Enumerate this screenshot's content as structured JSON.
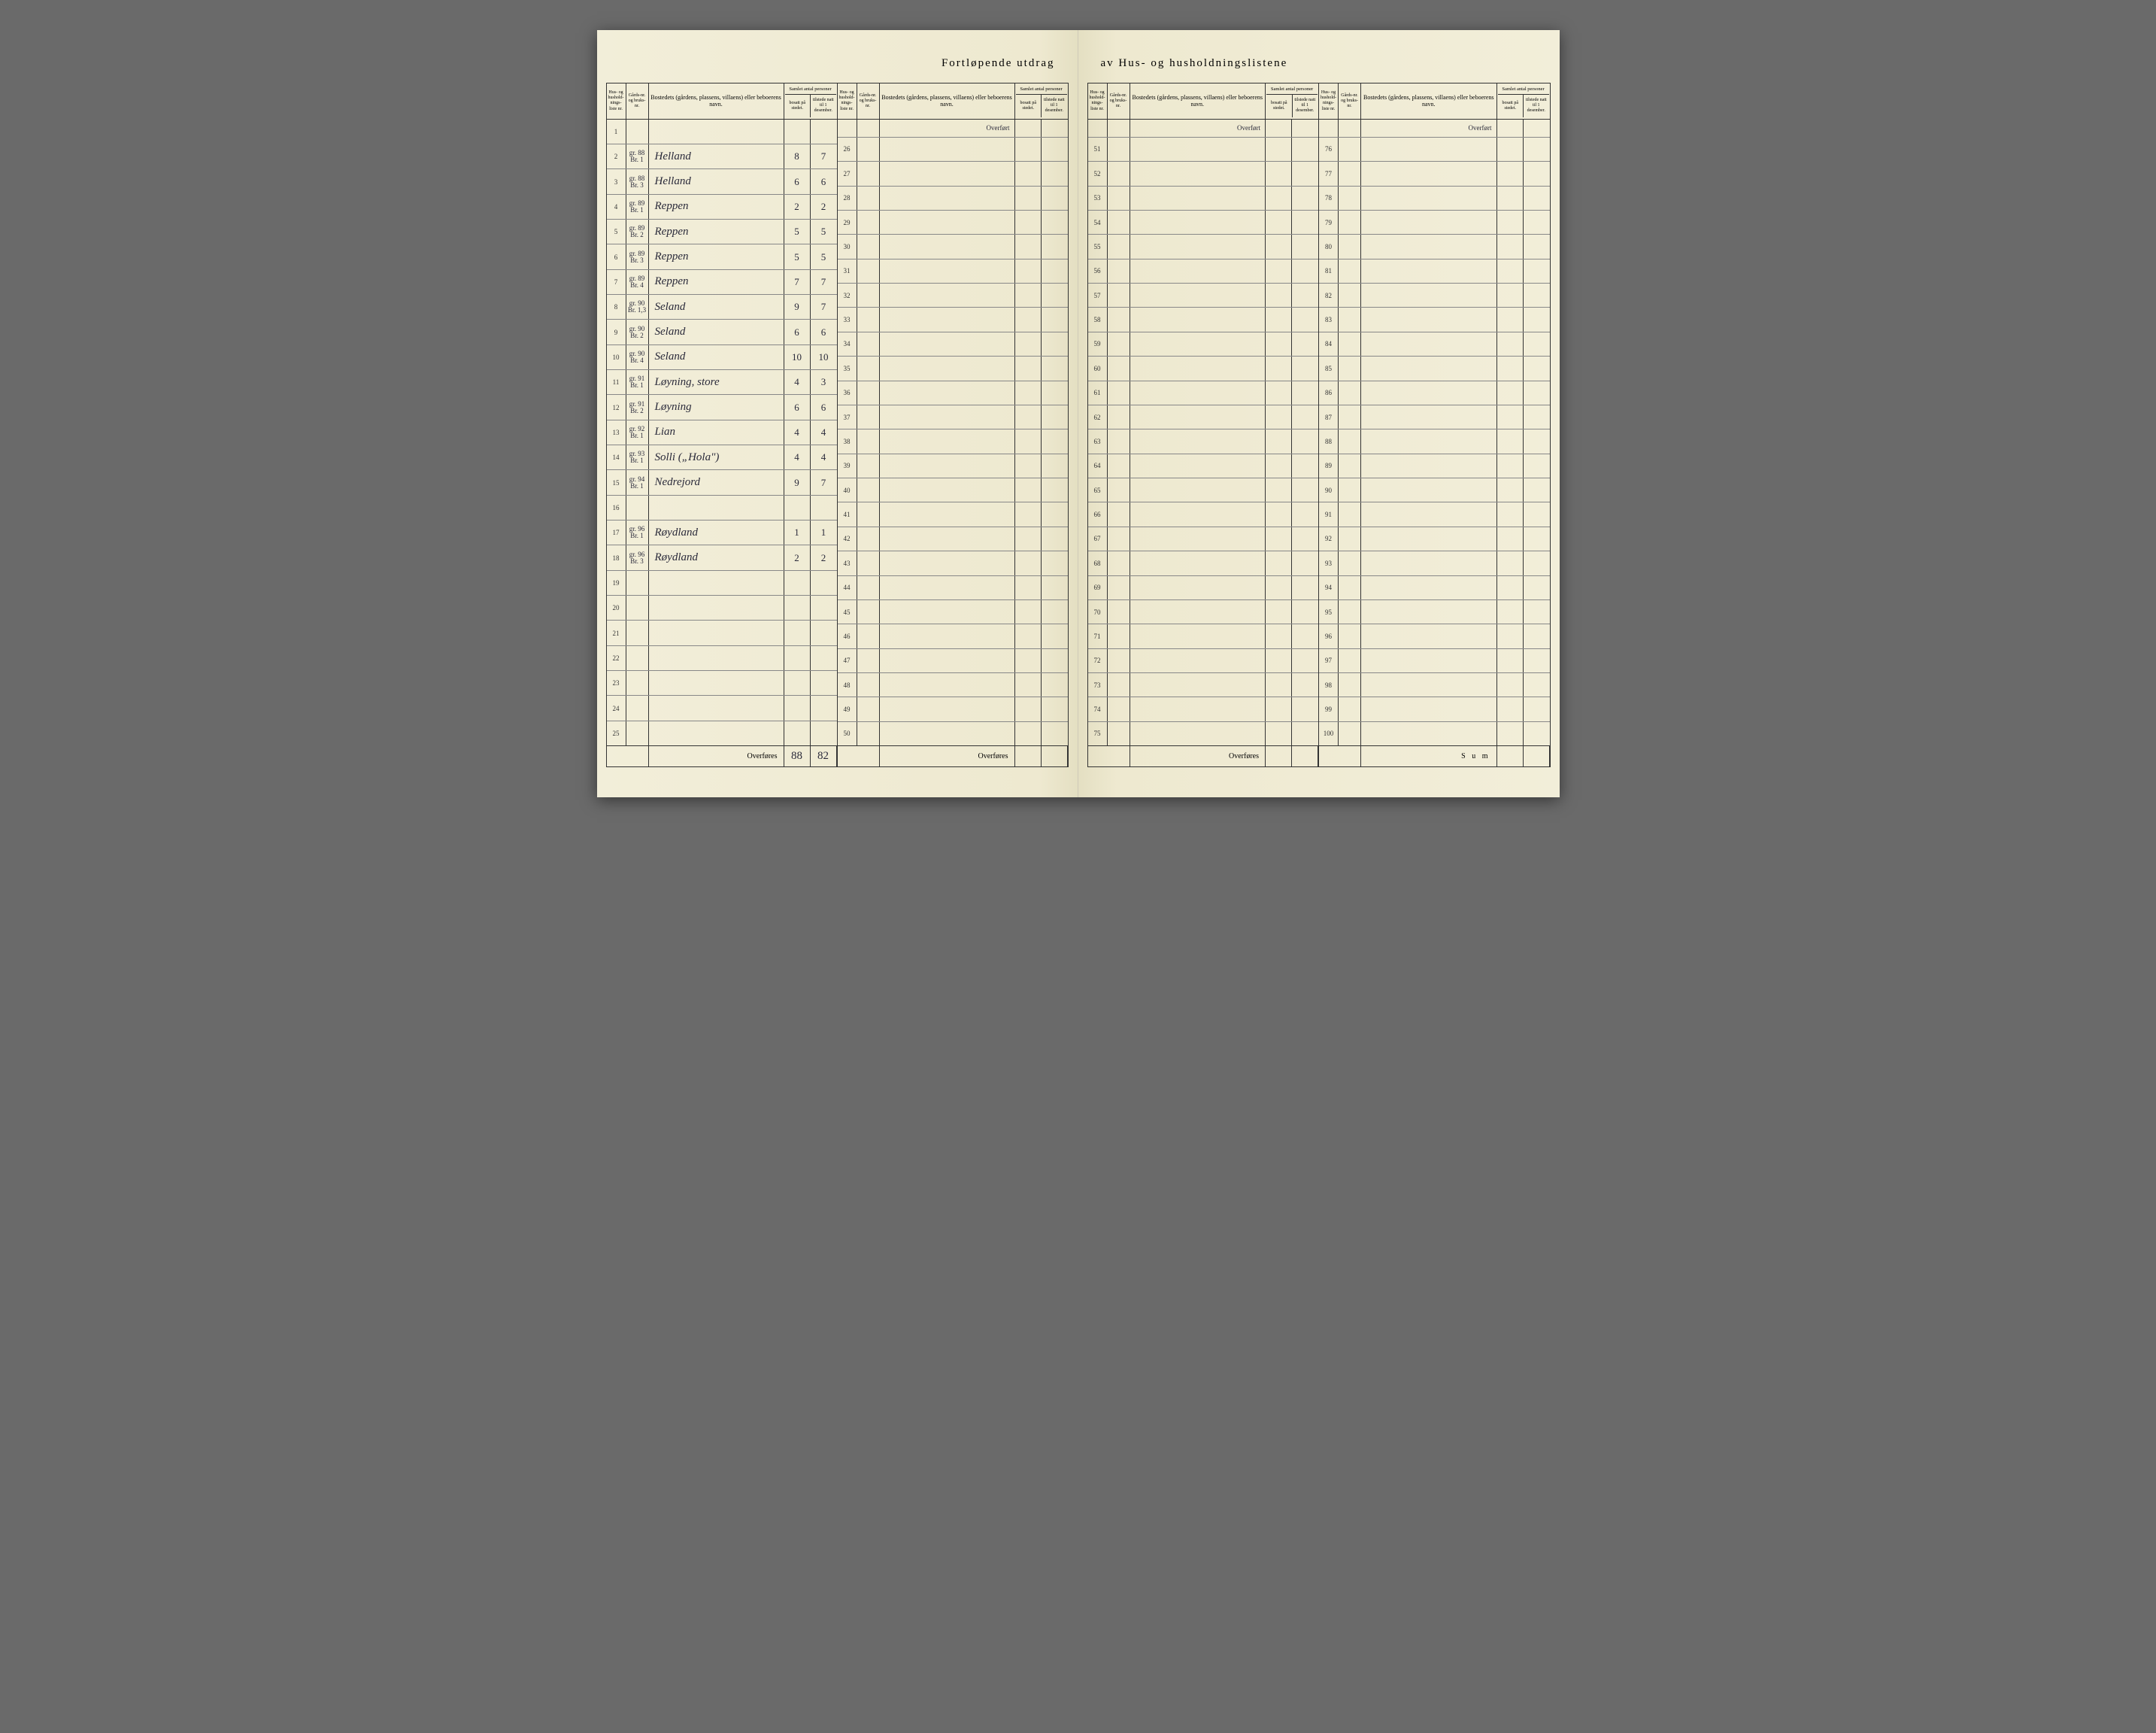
{
  "title_left": "Fortløpende  utdrag",
  "title_right": "av  Hus-  og  husholdningslistene",
  "headers": {
    "liste": "Hus- og hushold-nings-liste nr.",
    "gards": "Gårds-nr. og bruks-nr.",
    "bosted": "Bostedets (gårdens, plassens, villaens) eller beboerens navn.",
    "samlet": "Samlet antal personer",
    "bosatt": "bosatt på stedet.",
    "tilstede": "tilstede natt til 1 desember."
  },
  "overfort": "Overført",
  "overfores": "Overføres",
  "sum": "S u m",
  "totals": {
    "bosatt": "88",
    "tilstede": "82"
  },
  "panels": {
    "p1": {
      "start": 1,
      "rows": [
        {
          "n": "1",
          "g1": "",
          "g2": "",
          "navn": "",
          "b": "",
          "t": ""
        },
        {
          "n": "2",
          "g1": "gr. 88",
          "g2": "Br. 1",
          "navn": "Helland",
          "b": "8",
          "t": "7"
        },
        {
          "n": "3",
          "g1": "gr. 88",
          "g2": "Br. 3",
          "navn": "Helland",
          "b": "6",
          "t": "6"
        },
        {
          "n": "4",
          "g1": "gr. 89",
          "g2": "Br. 1",
          "navn": "Reppen",
          "b": "2",
          "t": "2"
        },
        {
          "n": "5",
          "g1": "gr. 89",
          "g2": "Br. 2",
          "navn": "Reppen",
          "b": "5",
          "t": "5"
        },
        {
          "n": "6",
          "g1": "gr. 89",
          "g2": "Br. 3",
          "navn": "Reppen",
          "b": "5",
          "t": "5"
        },
        {
          "n": "7",
          "g1": "gr. 89",
          "g2": "Br. 4",
          "navn": "Reppen",
          "b": "7",
          "t": "7"
        },
        {
          "n": "8",
          "g1": "gr. 90",
          "g2": "Br. 1,3",
          "navn": "Seland",
          "b": "9",
          "t": "7"
        },
        {
          "n": "9",
          "g1": "gr. 90",
          "g2": "Br. 2",
          "navn": "Seland",
          "b": "6",
          "t": "6"
        },
        {
          "n": "10",
          "g1": "gr. 90",
          "g2": "Br. 4",
          "navn": "Seland",
          "b": "10",
          "t": "10"
        },
        {
          "n": "11",
          "g1": "gr. 91",
          "g2": "Br. 1",
          "navn": "Løyning, store",
          "b": "4",
          "t": "3"
        },
        {
          "n": "12",
          "g1": "gr. 91",
          "g2": "Br. 2",
          "navn": "Løyning",
          "b": "6",
          "t": "6"
        },
        {
          "n": "13",
          "g1": "gr. 92",
          "g2": "Br. 1",
          "navn": "Lian",
          "b": "4",
          "t": "4"
        },
        {
          "n": "14",
          "g1": "gr. 93",
          "g2": "Br. 1",
          "navn": "Solli („Hola\")",
          "b": "4",
          "t": "4"
        },
        {
          "n": "15",
          "g1": "gr. 94",
          "g2": "Br. 1",
          "navn": "Nedrejord",
          "b": "9",
          "t": "7"
        },
        {
          "n": "16",
          "g1": "",
          "g2": "",
          "navn": "",
          "b": "",
          "t": ""
        },
        {
          "n": "17",
          "g1": "gr. 96",
          "g2": "Br. 1",
          "navn": "Røydland",
          "b": "1",
          "t": "1"
        },
        {
          "n": "18",
          "g1": "gr. 96",
          "g2": "Br. 3",
          "navn": "Røydland",
          "b": "2",
          "t": "2"
        },
        {
          "n": "19",
          "g1": "",
          "g2": "",
          "navn": "",
          "b": "",
          "t": ""
        },
        {
          "n": "20",
          "g1": "",
          "g2": "",
          "navn": "",
          "b": "",
          "t": ""
        },
        {
          "n": "21",
          "g1": "",
          "g2": "",
          "navn": "",
          "b": "",
          "t": ""
        },
        {
          "n": "22",
          "g1": "",
          "g2": "",
          "navn": "",
          "b": "",
          "t": ""
        },
        {
          "n": "23",
          "g1": "",
          "g2": "",
          "navn": "",
          "b": "",
          "t": ""
        },
        {
          "n": "24",
          "g1": "",
          "g2": "",
          "navn": "",
          "b": "",
          "t": ""
        },
        {
          "n": "25",
          "g1": "",
          "g2": "",
          "navn": "",
          "b": "",
          "t": ""
        }
      ]
    },
    "p2": {
      "start": 26,
      "count": 25
    },
    "p3": {
      "start": 51,
      "count": 25
    },
    "p4": {
      "start": 76,
      "count": 25
    }
  }
}
